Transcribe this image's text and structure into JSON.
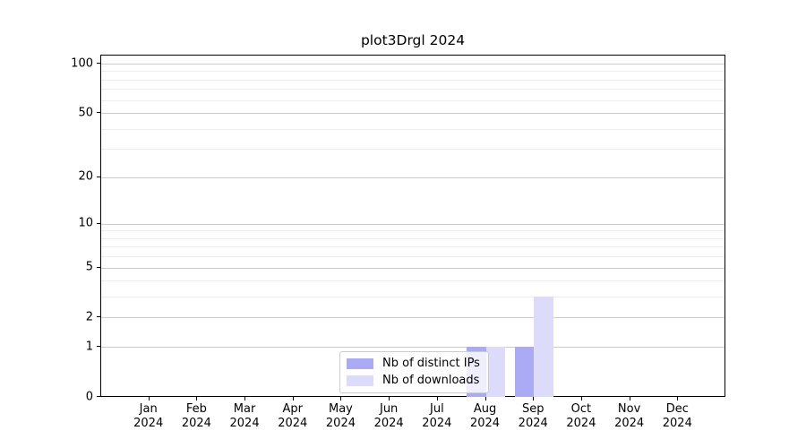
{
  "title": "plot3Drgl 2024",
  "chart_data": {
    "type": "bar",
    "title": "plot3Drgl 2024",
    "categories": [
      "Jan",
      "Feb",
      "Mar",
      "Apr",
      "May",
      "Jun",
      "Jul",
      "Aug",
      "Sep",
      "Oct",
      "Nov",
      "Dec"
    ],
    "year_label": "2024",
    "series": [
      {
        "name": "Nb of distinct IPs",
        "color": "#aaaaf5",
        "values": [
          0,
          0,
          0,
          0,
          0,
          0,
          0,
          1,
          1,
          0,
          0,
          0
        ]
      },
      {
        "name": "Nb of downloads",
        "color": "#dcdcfa",
        "values": [
          0,
          0,
          0,
          0,
          0,
          0,
          0,
          1,
          3,
          0,
          0,
          0
        ]
      }
    ],
    "xlabel": "",
    "ylabel": "",
    "yscale": "log10(1+y)",
    "yticks": [
      0,
      1,
      2,
      5,
      10,
      20,
      50,
      100
    ],
    "minor_gridline_values": [
      3,
      4,
      6,
      7,
      8,
      9,
      30,
      40,
      60,
      70,
      80,
      90
    ],
    "ylim": [
      0,
      112
    ],
    "grid": "horizontal",
    "legend_position": "inside-bottom-center",
    "colors": {
      "major_grid": "#cccccc",
      "minor_grid": "#ededed",
      "spine": "#000000",
      "text": "#000000",
      "background": "#ffffff"
    }
  }
}
